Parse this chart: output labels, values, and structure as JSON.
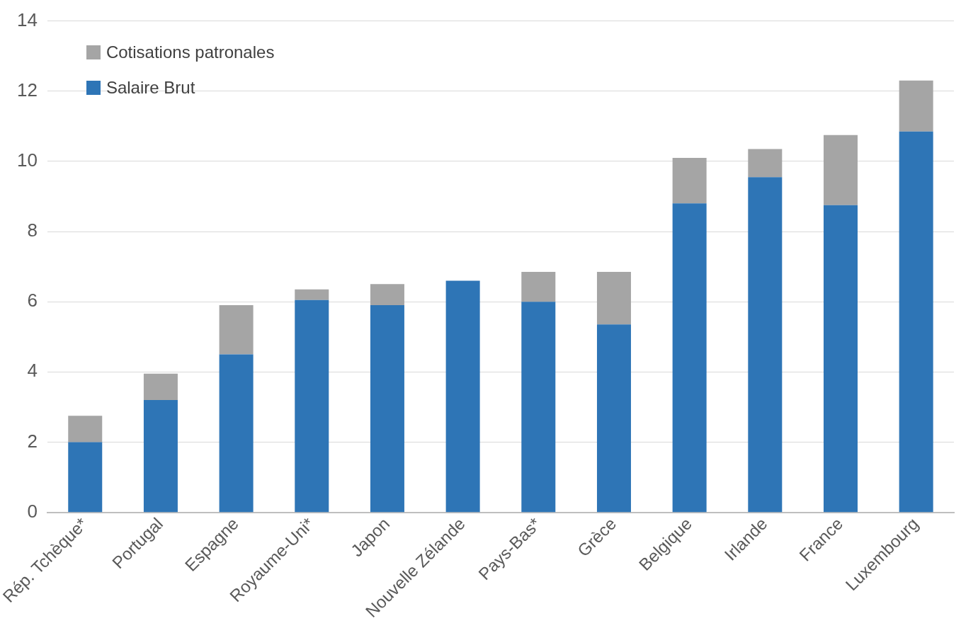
{
  "chart_data": {
    "type": "bar",
    "stacked": true,
    "categories": [
      "Rép. Tchèque*",
      "Portugal",
      "Espagne",
      "Royaume-Uni*",
      "Japon",
      "Nouvelle Zélande",
      "Pays-Bas*",
      "Grèce",
      "Belgique",
      "Irlande",
      "France",
      "Luxembourg"
    ],
    "series": [
      {
        "name": "Salaire Brut",
        "color": "#2e75b6",
        "values": [
          2.0,
          3.2,
          4.5,
          6.05,
          5.9,
          6.6,
          6.0,
          5.35,
          8.8,
          9.55,
          8.75,
          10.85
        ]
      },
      {
        "name": "Cotisations patronales",
        "color": "#a5a5a5",
        "values": [
          0.75,
          0.75,
          1.4,
          0.3,
          0.6,
          0,
          0.85,
          1.5,
          1.3,
          0.8,
          2.0,
          1.45
        ]
      }
    ],
    "ylim": [
      0,
      14
    ],
    "yticks": [
      0,
      2,
      4,
      6,
      8,
      10,
      12,
      14
    ],
    "grid": "y",
    "legend": "top left"
  }
}
